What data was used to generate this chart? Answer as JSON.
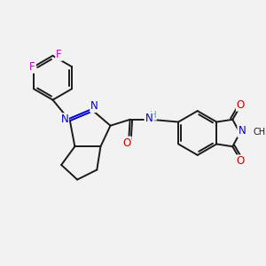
{
  "background_color": "#f2f2f2",
  "bond_color": "#1a1a1a",
  "bond_width": 1.4,
  "atom_colors": {
    "C": "#1a1a1a",
    "N": "#0000cc",
    "O": "#cc0000",
    "F": "#cc00cc",
    "H": "#4aadad"
  },
  "font_size": 8.5,
  "figsize": [
    3.0,
    3.0
  ],
  "dpi": 100,
  "xlim": [
    0,
    10
  ],
  "ylim": [
    0,
    10
  ]
}
